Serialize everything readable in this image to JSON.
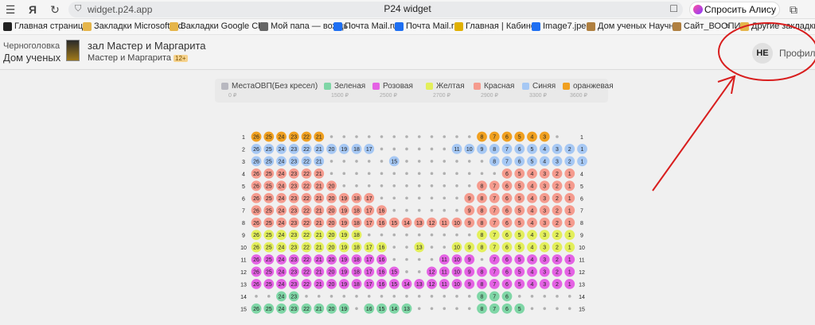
{
  "browser": {
    "url": "widget.p24.app",
    "tab_title": "P24 widget",
    "alice_label": "Спросить Алису AI"
  },
  "bookmarks": [
    {
      "label": "Главная страница",
      "icon": "plus-square-icon",
      "color": "#222222"
    },
    {
      "label": "Закладки Microsoft Ed",
      "icon": "folder-icon",
      "color": "#e5b54a"
    },
    {
      "label": "Закладки Google Chr",
      "icon": "folder-icon",
      "color": "#e5b54a"
    },
    {
      "label": "Мой папа — вождь",
      "icon": "document-icon",
      "color": "#666666"
    },
    {
      "label": "Почта Mail.ru",
      "icon": "mail-icon",
      "color": "#1e6ff2"
    },
    {
      "label": "Почта Mail.ru",
      "icon": "mail-icon",
      "color": "#1e6ff2"
    },
    {
      "label": "Главная | Кабинет",
      "icon": "logo-icon",
      "color": "#e0b000"
    },
    {
      "label": "Image7.jpeg",
      "icon": "image-icon",
      "color": "#1e6ff2"
    },
    {
      "label": "Дом ученых Научн",
      "icon": "emblem-icon",
      "color": "#b08040"
    },
    {
      "label": "Сайт_ВООПИ",
      "icon": "emblem-icon",
      "color": "#b08040"
    },
    {
      "label": "»",
      "icon": "",
      "color": ""
    },
    {
      "label": "Другие закладки",
      "icon": "folder-icon",
      "color": "#e5b54a"
    }
  ],
  "header": {
    "city": "Черноголовка",
    "venue": "Дом ученых",
    "hall": "зал Мастер и Маргарита",
    "subtitle": "Мастер и Маргарита",
    "age": "12+",
    "avatar_initials": "НЕ",
    "profile_label": "Профиль"
  },
  "legend": [
    {
      "name": "МестаОВП(Без кресел)",
      "price": "0 ₽",
      "color": "#b8b8c0"
    },
    {
      "name": "Зеленая",
      "price": "1500 ₽",
      "color": "#7fd6a6"
    },
    {
      "name": "Розовая",
      "price": "2500 ₽",
      "color": "#e462e4"
    },
    {
      "name": "Желтая",
      "price": "2700 ₽",
      "color": "#e3ef5b"
    },
    {
      "name": "Красная",
      "price": "2900 ₽",
      "color": "#f59b8e"
    },
    {
      "name": "Синяя",
      "price": "3300 ₽",
      "color": "#a6c8f4"
    },
    {
      "name": "оранжевая",
      "price": "3600 ₽",
      "color": "#f0a020"
    }
  ],
  "seat_colors": {
    "O": "#f0a020",
    "B": "#a6c8f4",
    "R": "#f59b8e",
    "Y": "#e3ef5b",
    "P": "#e462e4",
    "G": "#7fd6a6"
  },
  "seat_rows": [
    {
      "row": "1",
      "left": "O26 O25 O24 O23 O22 O21 . . . . . . . . . . . . O8 O7 O6 O5 O4 O3 ."
    },
    {
      "row": "2",
      "left": "B26 B25 B24 B23 B22 B21 B20 B19 B18 B17 . . . . . . B11 B10 B9 B8 B7 B6 B5 B4 B3 B2 B1"
    },
    {
      "row": "3",
      "left": "B26 B25 B24 B23 B22 B21 . . . . . B15 . . . . . . . B8 B7 B6 B5 B4 B3 B2 B1"
    },
    {
      "row": "4",
      "left": "R26 R25 R24 R23 R22 R21 . . . . . . . . . . . . . . R6 R5 R4 R3 R2 R1"
    },
    {
      "row": "5",
      "left": "R26 R25 R24 R23 R22 R21 R20 . . . . . . . . . . . R8 R7 R6 R5 R4 R3 R2 R1"
    },
    {
      "row": "6",
      "left": "R26 R25 R24 R23 R22 R21 R20 R19 R18 R17 . . . . . . . R9 R8 R7 R6 R5 R4 R3 R2 R1"
    },
    {
      "row": "7",
      "left": "R26 R25 R24 R23 R22 R21 R20 R19 R18 R17 R16 . . . . . . R9 R8 R7 R6 R5 R4 R3 R2 R1"
    },
    {
      "row": "8",
      "left": "R26 R25 R24 R23 R22 R21 R20 R19 R18 R17 R16 R15 R14 R13 R12 R11 R10 R9 R8 R7 R6 R5 R4 R3 R2 R1"
    },
    {
      "row": "9",
      "left": "Y26 Y25 Y24 Y23 Y22 Y21 Y20 Y19 Y18 . . . . . . . . . Y8 Y7 Y6 Y5 Y4 Y3 Y2 Y1"
    },
    {
      "row": "10",
      "left": "Y26 Y25 Y24 Y23 Y22 Y21 Y20 Y19 Y18 Y17 Y16 . . Y13 . . Y10 Y9 Y8 Y7 Y6 Y5 Y4 Y3 Y2 Y1"
    },
    {
      "row": "11",
      "left": "P26 P25 P24 P23 P22 P21 P20 P19 P18 P17 P16 . . . . P11 P10 P9 . P7 P6 P5 P4 P3 P2 P1"
    },
    {
      "row": "12",
      "left": "P26 P25 P24 P23 P22 P21 P20 P19 P18 P17 P16 P15 . . P12 P11 P10 P9 P8 P7 P6 P5 P4 P3 P2 P1"
    },
    {
      "row": "13",
      "left": "P26 P25 P24 P23 P22 P21 P20 P19 P18 P17 P16 P15 P14 P13 P12 P11 P10 P9 P8 P7 P6 P5 P4 P3 P2 P1"
    },
    {
      "row": "14",
      "left": ". . G24 G23 . . . . . . . . . . . . . . G8 G7 G6 . . . . ."
    },
    {
      "row": "15",
      "left": "G26 G25 G24 G23 G22 G21 G20 G19 . G16 G15 G14 G13 . . . . . G8 G7 G6 G5 . . . ."
    }
  ]
}
